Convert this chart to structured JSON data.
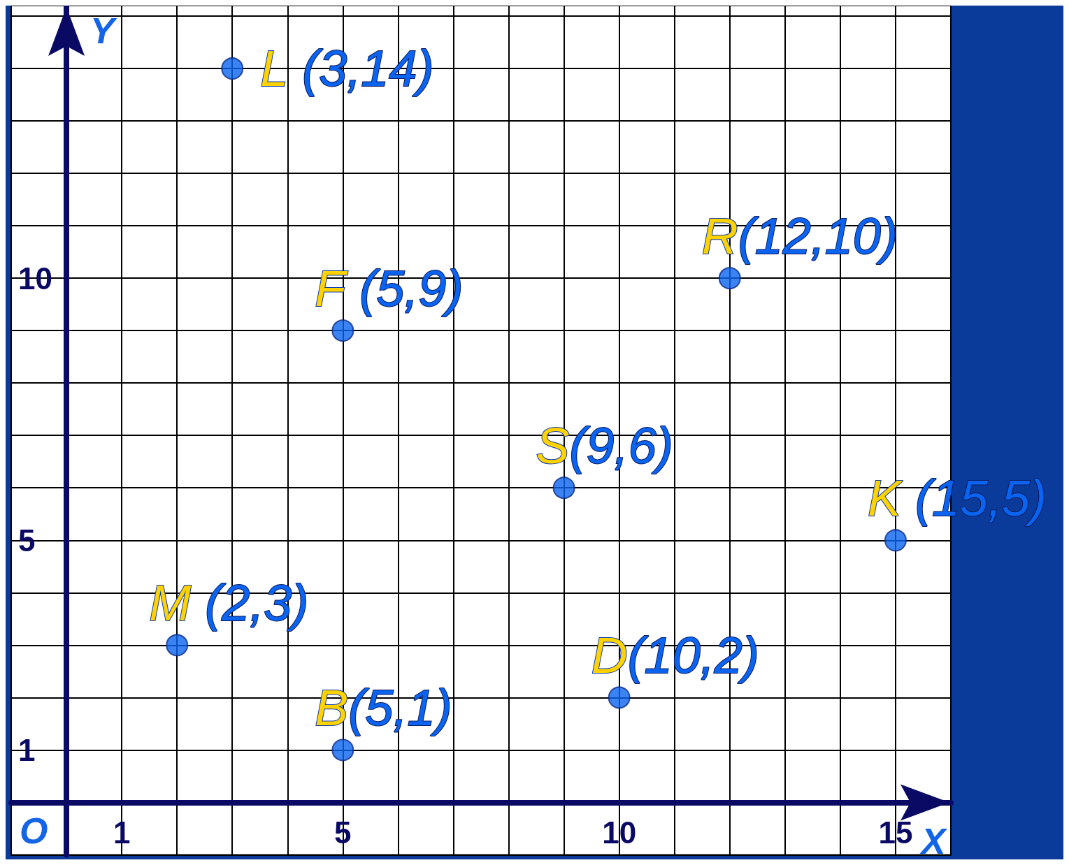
{
  "chart_data": {
    "type": "scatter",
    "xlabel": "X",
    "ylabel": "Y",
    "xlim": [
      -1,
      16
    ],
    "ylim": [
      -1,
      15.2
    ],
    "xticks": [
      {
        "value": -1,
        "label": null
      },
      {
        "value": 0,
        "label": null
      },
      1,
      {
        "value": 2,
        "label": null
      },
      {
        "value": 3,
        "label": null
      },
      {
        "value": 4,
        "label": null
      },
      5,
      {
        "value": 6,
        "label": null
      },
      {
        "value": 7,
        "label": null
      },
      {
        "value": 8,
        "label": null
      },
      {
        "value": 9,
        "label": null
      },
      10,
      {
        "value": 11,
        "label": null
      },
      {
        "value": 12,
        "label": null
      },
      {
        "value": 13,
        "label": null
      },
      {
        "value": 14,
        "label": null
      },
      15,
      {
        "value": 16,
        "label": null
      }
    ],
    "yticks": [
      {
        "value": -1,
        "label": null
      },
      {
        "value": 0,
        "label": null
      },
      1,
      {
        "value": 2,
        "label": null
      },
      {
        "value": 3,
        "label": null
      },
      {
        "value": 4,
        "label": null
      },
      5,
      {
        "value": 6,
        "label": null
      },
      {
        "value": 7,
        "label": null
      },
      {
        "value": 8,
        "label": null
      },
      {
        "value": 9,
        "label": null
      },
      10,
      {
        "value": 11,
        "label": null
      },
      {
        "value": 12,
        "label": null
      },
      {
        "value": 13,
        "label": null
      },
      {
        "value": 14,
        "label": null
      },
      {
        "value": 15,
        "label": null
      }
    ],
    "grid": true,
    "marker": "circle",
    "annotations": [
      "O",
      {
        "text": "L (3,14)",
        "x": 3,
        "y": 14
      },
      {
        "text": "F (5,9)",
        "x": 5,
        "y": 9
      },
      {
        "text": "R(12,10)",
        "x": 12,
        "y": 10
      },
      {
        "text": "S(9,6)",
        "x": 9,
        "y": 6
      },
      {
        "text": "K (15,5)",
        "x": 15,
        "y": 5
      },
      {
        "text": "M (2,3)",
        "x": 2,
        "y": 3
      },
      {
        "text": "D(10,2)",
        "x": 10,
        "y": 2
      },
      {
        "text": "B(5,1)",
        "x": 5,
        "y": 1
      }
    ],
    "series": [
      {
        "color": "#0a64f0",
        "x": [
          3,
          5,
          12,
          9,
          15,
          2,
          10,
          5
        ],
        "values": [
          14,
          9,
          10,
          6,
          5,
          3,
          2,
          1
        ]
      }
    ]
  }
}
